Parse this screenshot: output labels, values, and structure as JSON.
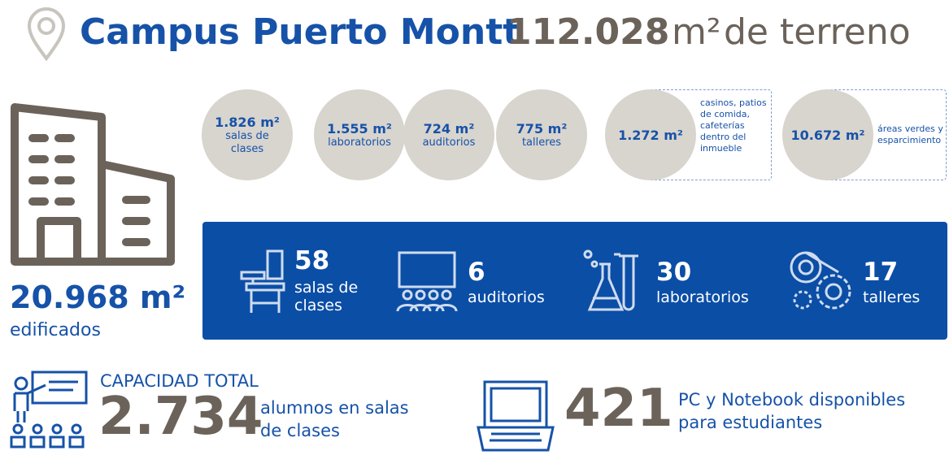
{
  "header": {
    "title": "Campus Puerto Montt",
    "area": "112.028",
    "unit": "m²",
    "area_label": "de terreno"
  },
  "spaces": [
    {
      "value": "1.826 m²",
      "label": "salas de clases"
    },
    {
      "value": "1.555 m²",
      "label": "laboratorios"
    },
    {
      "value": "724 m²",
      "label": "auditorios"
    },
    {
      "value": "775 m²",
      "label": "talleres"
    },
    {
      "value": "1.272 m²",
      "label": "casinos, patios de comida, cafeterías dentro del inmueble"
    },
    {
      "value": "10.672 m²",
      "label": "áreas verdes y esparcimiento"
    }
  ],
  "built": {
    "value": "20.968 m²",
    "label": "edificados"
  },
  "facilities": [
    {
      "value": "58",
      "label": "salas de clases"
    },
    {
      "value": "6",
      "label": "auditorios"
    },
    {
      "value": "30",
      "label": "laboratorios"
    },
    {
      "value": "17",
      "label": "talleres"
    }
  ],
  "capacity": {
    "title": "CAPACIDAD TOTAL",
    "value": "2.734",
    "label": "alumnos en salas de clases"
  },
  "computers": {
    "value": "421",
    "label": "PC y Notebook disponibles para estudiantes"
  }
}
